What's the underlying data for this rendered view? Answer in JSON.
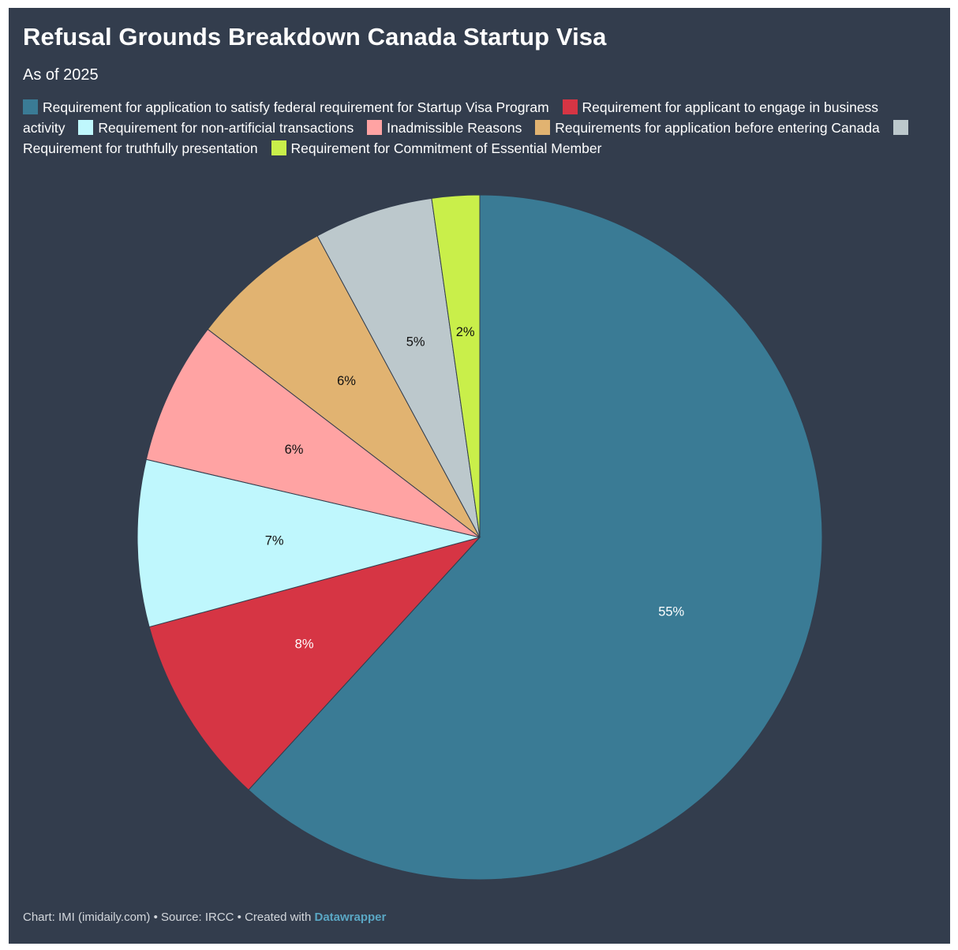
{
  "chart_data": {
    "type": "pie",
    "title": "Refusal Grounds Breakdown Canada Startup Visa",
    "subtitle": "As of 2025",
    "legend_placement": "top",
    "slices": [
      {
        "name": "Requirement for application to satisfy federal requirement for Startup Visa Program",
        "value": 55,
        "label": "55%",
        "color": "#3a7b95",
        "label_color": "#ffffff"
      },
      {
        "name": "Requirement for applicant to engage in business activity",
        "value": 8,
        "label": "8%",
        "color": "#d63544",
        "label_color": "#ffffff"
      },
      {
        "name": "Requirement for non-artificial transactions",
        "value": 7,
        "label": "7%",
        "color": "#bff7fd",
        "label_color": "#111111"
      },
      {
        "name": "Inadmissible Reasons",
        "value": 6,
        "label": "6%",
        "color": "#ffa3a3",
        "label_color": "#111111"
      },
      {
        "name": "Requirements for application before entering Canada",
        "value": 6,
        "label": "6%",
        "color": "#e1b371",
        "label_color": "#111111"
      },
      {
        "name": "Requirement for truthfully presentation",
        "value": 5,
        "label": "5%",
        "color": "#bcc8cc",
        "label_color": "#111111"
      },
      {
        "name": "Requirement for Commitment of Essential Member",
        "value": 2,
        "label": "2%",
        "color": "#c9ef4a",
        "label_color": "#111111"
      }
    ]
  },
  "footer": {
    "prefix": "Chart: IMI (imidaily.com) • Source: IRCC • Created with ",
    "brand": "Datawrapper"
  }
}
